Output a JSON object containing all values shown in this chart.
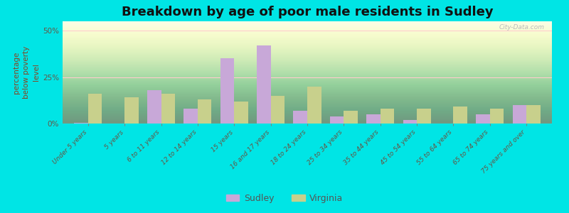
{
  "title": "Breakdown by age of poor male residents in Sudley",
  "categories": [
    "Under 5 years",
    "5 years",
    "6 to 11 years",
    "12 to 14 years",
    "15 years",
    "16 and 17 years",
    "18 to 24 years",
    "25 to 34 years",
    "35 to 44 years",
    "45 to 54 years",
    "55 to 64 years",
    "65 to 74 years",
    "75 years and over"
  ],
  "sudley_values": [
    0.5,
    0,
    18,
    8,
    35,
    42,
    7,
    4,
    5,
    2,
    0,
    5,
    10
  ],
  "virginia_values": [
    16,
    14,
    16,
    13,
    12,
    15,
    20,
    7,
    8,
    8,
    9,
    8,
    10
  ],
  "sudley_color": "#c8a8d8",
  "virginia_color": "#c8d08c",
  "outer_background": "#00e5e5",
  "ylabel": "percentage\nbelow poverty\nlevel",
  "ylim_max": 55,
  "yticks": [
    0,
    25,
    50
  ],
  "ytick_labels": [
    "0%",
    "25%",
    "50%"
  ],
  "bar_width": 0.38,
  "legend_sudley": "Sudley",
  "legend_virginia": "Virginia",
  "title_fontsize": 13,
  "axis_label_fontsize": 7.5,
  "tick_fontsize": 6.5,
  "legend_fontsize": 9,
  "grid_color": "#ffcccc",
  "tick_label_color": "#665544",
  "ylabel_color": "#884422",
  "watermark": "City-Data.com"
}
